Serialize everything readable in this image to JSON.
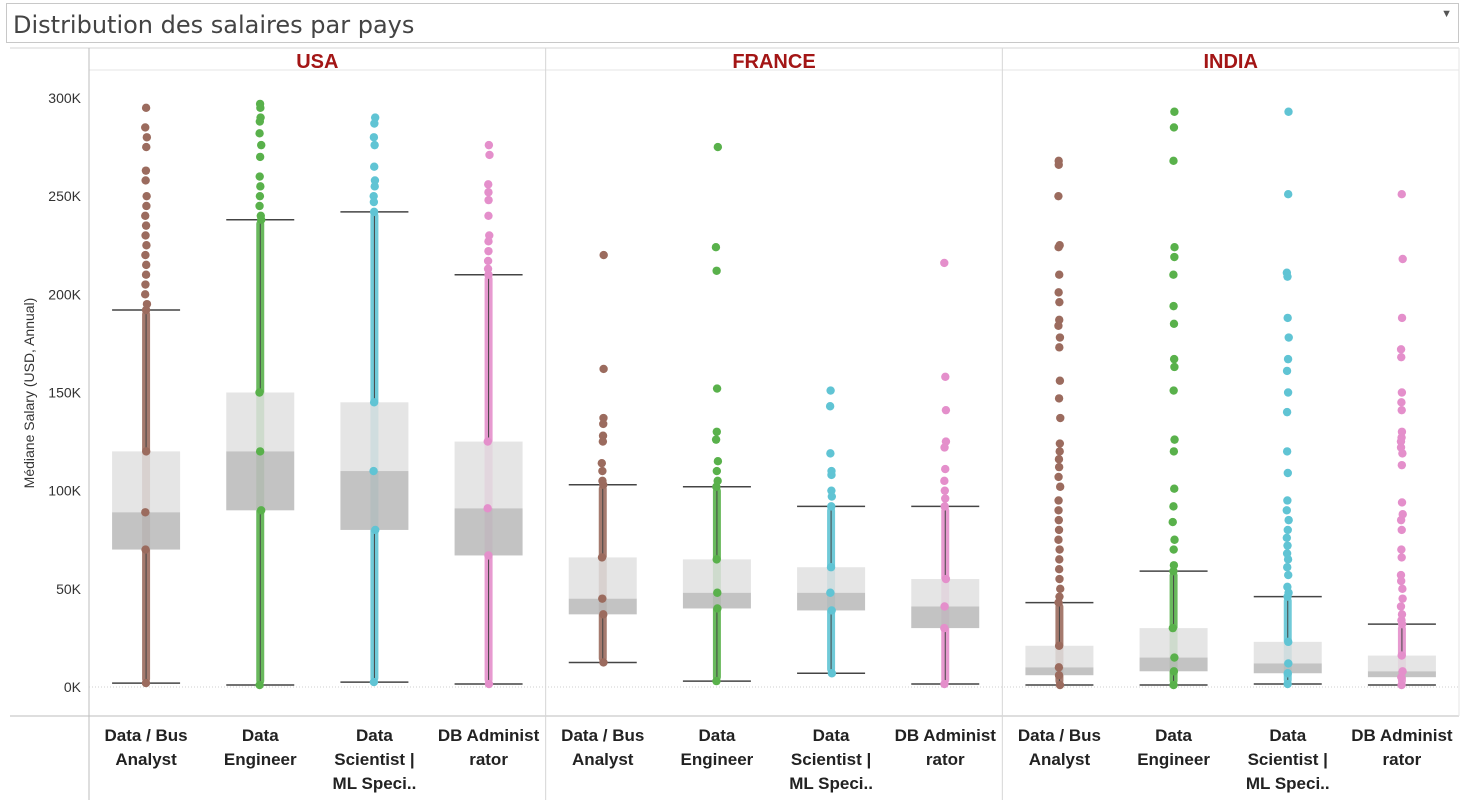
{
  "header": {
    "title": "Distribution des salaires par pays",
    "dropdown_icon": "chevron-down-icon"
  },
  "chart_data": {
    "type": "box-plot with jittered points",
    "panels": [
      "USA",
      "FRANCE",
      "INDIA"
    ],
    "categories": [
      "Data / Bus Analyst",
      "Data Engineer",
      "Data Scientist | ML Speci..",
      "DB Administrator"
    ],
    "category_lines": [
      [
        "Data / Bus",
        "Analyst"
      ],
      [
        "Data",
        "Engineer"
      ],
      [
        "Data",
        "Scientist |",
        "ML Speci.."
      ],
      [
        "DB Administ",
        "rator"
      ]
    ],
    "ylabel": "Médiane Salary (USD, Annual)",
    "yticks": [
      0,
      50000,
      100000,
      150000,
      200000,
      250000,
      300000
    ],
    "ytick_labels": [
      "0K",
      "50K",
      "100K",
      "150K",
      "200K",
      "250K",
      "300K"
    ],
    "ylim": [
      0,
      300000
    ],
    "colors": {
      "Data / Bus Analyst": "#9b6b5e",
      "Data Engineer": "#59b14b",
      "Data Scientist | ML Speci..": "#60c4d4",
      "DB Administrator": "#e48fcb",
      "panel_title": "#a31515",
      "box_upper": "#e0e0e0",
      "box_lower": "#bcbcbc"
    },
    "boxes": {
      "USA": [
        {
          "category": "Data / Bus Analyst",
          "whisker_low": 2000,
          "q1": 70000,
          "median": 89000,
          "q3": 120000,
          "whisker_high": 192000,
          "outliers": [
            295000,
            285000,
            280000,
            275000,
            263000,
            258000,
            250000,
            245000,
            240000,
            235000,
            230000,
            225000,
            220000,
            215000,
            210000,
            205000,
            200000,
            195000
          ]
        },
        {
          "category": "Data Engineer",
          "whisker_low": 1000,
          "q1": 90000,
          "median": 120000,
          "q3": 150000,
          "whisker_high": 238000,
          "outliers": [
            297000,
            295000,
            290000,
            288000,
            282000,
            276000,
            270000,
            260000,
            255000,
            250000,
            245000,
            240000
          ]
        },
        {
          "category": "Data Scientist | ML Speci..",
          "whisker_low": 2500,
          "q1": 80000,
          "median": 110000,
          "q3": 145000,
          "whisker_high": 242000,
          "outliers": [
            290000,
            287000,
            280000,
            276000,
            265000,
            258000,
            255000,
            250000,
            247000
          ]
        },
        {
          "category": "DB Administrator",
          "whisker_low": 1500,
          "q1": 67000,
          "median": 91000,
          "q3": 125000,
          "whisker_high": 210000,
          "outliers": [
            276000,
            271000,
            256000,
            252000,
            248000,
            240000,
            230000,
            227000,
            222000,
            217000,
            213000
          ]
        }
      ],
      "FRANCE": [
        {
          "category": "Data / Bus Analyst",
          "whisker_low": 12500,
          "q1": 37000,
          "median": 45000,
          "q3": 66000,
          "whisker_high": 103000,
          "outliers": [
            220000,
            162000,
            137000,
            134000,
            128000,
            125000,
            114000,
            110000,
            105000
          ]
        },
        {
          "category": "Data Engineer",
          "whisker_low": 3000,
          "q1": 40000,
          "median": 48000,
          "q3": 65000,
          "whisker_high": 102000,
          "outliers": [
            275000,
            224000,
            212000,
            152000,
            130000,
            126000,
            115000,
            110000,
            105000
          ]
        },
        {
          "category": "Data Scientist | ML Speci..",
          "whisker_low": 7000,
          "q1": 39000,
          "median": 48000,
          "q3": 61000,
          "whisker_high": 92000,
          "outliers": [
            151000,
            143000,
            119000,
            110000,
            108000,
            100000,
            97000
          ]
        },
        {
          "category": "DB Administrator",
          "whisker_low": 1500,
          "q1": 30000,
          "median": 41000,
          "q3": 55000,
          "whisker_high": 92000,
          "outliers": [
            216000,
            158000,
            141000,
            125000,
            122000,
            111000,
            105000,
            100000,
            96000
          ]
        }
      ],
      "INDIA": [
        {
          "category": "Data / Bus Analyst",
          "whisker_low": 1000,
          "q1": 6000,
          "median": 10000,
          "q3": 21000,
          "whisker_high": 43000,
          "outliers": [
            268000,
            266000,
            250000,
            225000,
            224000,
            210000,
            201000,
            196000,
            187000,
            184000,
            178000,
            173000,
            156000,
            147000,
            137000,
            124000,
            120000,
            116000,
            112000,
            107000,
            102000,
            95000,
            90000,
            85000,
            80000,
            75000,
            70000,
            65000,
            60000,
            55000,
            50000,
            46000
          ]
        },
        {
          "category": "Data Engineer",
          "whisker_low": 1000,
          "q1": 8000,
          "median": 15000,
          "q3": 30000,
          "whisker_high": 59000,
          "outliers": [
            293000,
            285000,
            268000,
            224000,
            219000,
            210000,
            194000,
            185000,
            167000,
            163000,
            151000,
            126000,
            120000,
            101000,
            92000,
            84000,
            75000,
            70000,
            62000
          ]
        },
        {
          "category": "Data Scientist | ML Speci..",
          "whisker_low": 1500,
          "q1": 7000,
          "median": 12000,
          "q3": 23000,
          "whisker_high": 46000,
          "outliers": [
            293000,
            251000,
            211000,
            209000,
            188000,
            178000,
            167000,
            161000,
            150000,
            140000,
            120000,
            109000,
            95000,
            90000,
            85000,
            80000,
            76000,
            72000,
            68000,
            65000,
            61000,
            57000,
            51000,
            48000
          ]
        },
        {
          "category": "DB Administrator",
          "whisker_low": 1000,
          "q1": 5000,
          "median": 8000,
          "q3": 16000,
          "whisker_high": 32000,
          "outliers": [
            251000,
            218000,
            188000,
            172000,
            168000,
            150000,
            145000,
            141000,
            130000,
            127000,
            125000,
            122000,
            119000,
            113000,
            94000,
            88000,
            85000,
            80000,
            70000,
            66000,
            57000,
            54000,
            50000,
            45000,
            41000,
            37000,
            34000
          ]
        }
      ]
    }
  }
}
